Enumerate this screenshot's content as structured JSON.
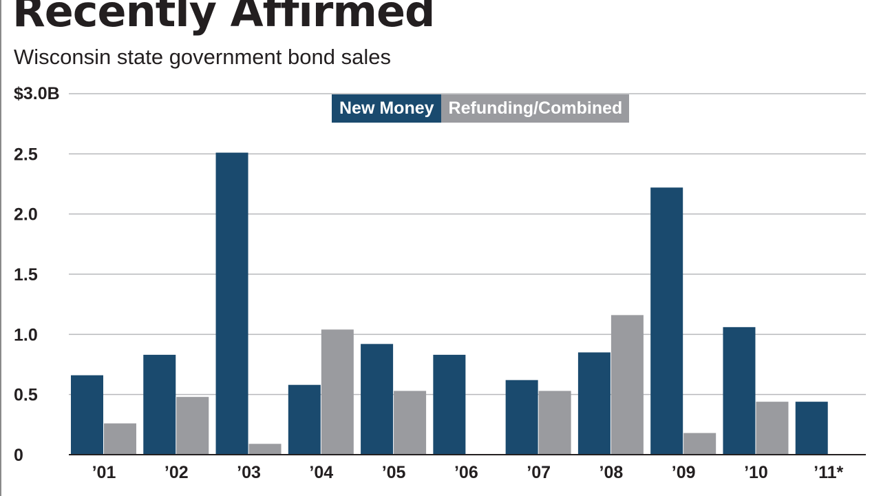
{
  "chart_data": {
    "type": "bar",
    "title": "Recently Affirmed",
    "subtitle": "Wisconsin state government bond sales",
    "ylabel": "",
    "xlabel": "",
    "ylim": [
      0,
      3.0
    ],
    "yticks": [
      0,
      0.5,
      1.0,
      1.5,
      2.0,
      2.5,
      3.0
    ],
    "ytick_labels": [
      "0",
      "0.5",
      "1.0",
      "1.5",
      "2.0",
      "2.5",
      "$3.0B"
    ],
    "categories": [
      "’01",
      "’02",
      "’03",
      "’04",
      "’05",
      "’06",
      "’07",
      "’08",
      "’09",
      "’10",
      "’11*"
    ],
    "series": [
      {
        "name": "New Money",
        "color": "#1a4a6e",
        "values": [
          0.66,
          0.83,
          2.51,
          0.58,
          0.92,
          0.83,
          0.62,
          0.85,
          2.22,
          1.06,
          0.44
        ]
      },
      {
        "name": "Refunding/Combined",
        "color": "#9a9b9f",
        "values": [
          0.26,
          0.48,
          0.09,
          1.04,
          0.53,
          0,
          0.53,
          1.16,
          0.18,
          0.44,
          0
        ]
      }
    ],
    "grid": true,
    "legend": "top-center"
  }
}
